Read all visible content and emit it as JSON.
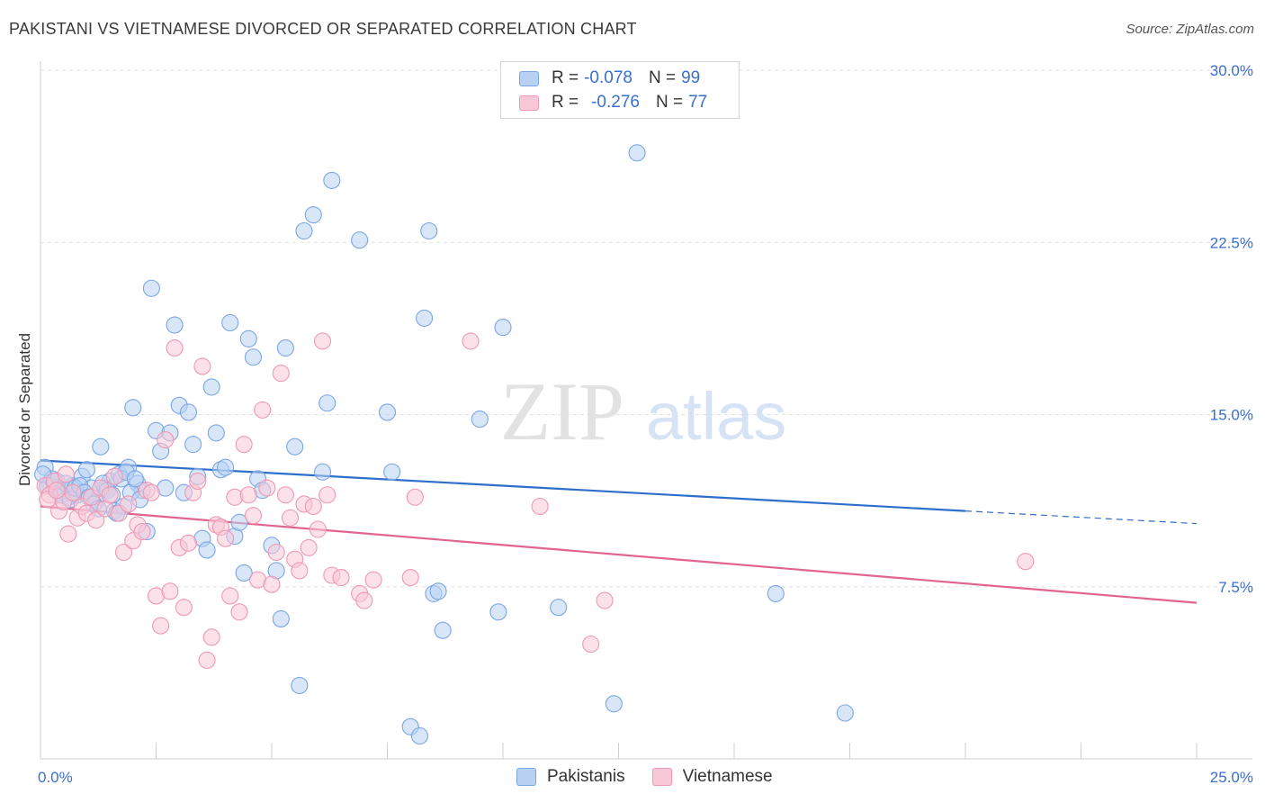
{
  "title": "PAKISTANI VS VIETNAMESE DIVORCED OR SEPARATED CORRELATION CHART",
  "source": "Source: ZipAtlas.com",
  "watermark": {
    "part1": "ZIP",
    "part2": "atlas"
  },
  "legend": {
    "r_label": "R =",
    "n_label": "N =",
    "rows": [
      {
        "name": "Pakistanis",
        "r": "-0.078",
        "n": "99",
        "fill": "#b8d1f3",
        "stroke": "#7aa6e6"
      },
      {
        "name": "Vietnamese",
        "r": "-0.276",
        "n": "77",
        "fill": "#f9c8d7",
        "stroke": "#ef98b4"
      }
    ]
  },
  "chart_data": {
    "type": "scatter",
    "ylabel": "Divorced or Separated",
    "xlim": [
      0,
      25
    ],
    "ylim": [
      0,
      30
    ],
    "x_tick_labels": [
      {
        "value": 0,
        "label": "0.0%"
      },
      {
        "value": 25,
        "label": "25.0%"
      }
    ],
    "y_tick_labels": [
      {
        "value": 7.5,
        "label": "7.5%"
      },
      {
        "value": 15,
        "label": "15.0%"
      },
      {
        "value": 22.5,
        "label": "22.5%"
      },
      {
        "value": 30,
        "label": "30.0%"
      }
    ],
    "grid": true,
    "legend_position": "top-center",
    "series": [
      {
        "name": "Pakistanis",
        "color": "#7aa6e6",
        "fill": "#b8d1f3",
        "trend_color": "#2e6fcc",
        "trend": {
          "x0": 0,
          "y0": 13.0,
          "x1": 20,
          "y1": 10.8,
          "dashed_to_x": 25,
          "dashed_to_y": 10.25
        },
        "points": [
          [
            0.1,
            12.7
          ],
          [
            0.2,
            12.0
          ],
          [
            0.3,
            11.8
          ],
          [
            0.35,
            12.1
          ],
          [
            0.4,
            11.6
          ],
          [
            0.5,
            11.7
          ],
          [
            0.6,
            11.4
          ],
          [
            0.7,
            11.9
          ],
          [
            0.8,
            11.5
          ],
          [
            0.9,
            12.3
          ],
          [
            1.0,
            12.6
          ],
          [
            1.1,
            11.8
          ],
          [
            1.2,
            11.2
          ],
          [
            1.3,
            13.6
          ],
          [
            1.4,
            11.8
          ],
          [
            1.5,
            12.1
          ],
          [
            1.6,
            10.8
          ],
          [
            1.7,
            12.4
          ],
          [
            1.8,
            11.0
          ],
          [
            1.9,
            12.7
          ],
          [
            2.0,
            15.3
          ],
          [
            2.1,
            12.0
          ],
          [
            2.2,
            11.7
          ],
          [
            2.3,
            9.9
          ],
          [
            2.4,
            20.5
          ],
          [
            2.5,
            14.3
          ],
          [
            2.6,
            13.4
          ],
          [
            2.7,
            11.8
          ],
          [
            2.8,
            14.2
          ],
          [
            2.9,
            18.9
          ],
          [
            3.0,
            15.4
          ],
          [
            3.1,
            11.6
          ],
          [
            3.2,
            15.1
          ],
          [
            3.3,
            13.7
          ],
          [
            3.4,
            12.3
          ],
          [
            3.5,
            9.6
          ],
          [
            3.6,
            9.1
          ],
          [
            3.7,
            16.2
          ],
          [
            3.8,
            14.2
          ],
          [
            3.9,
            12.6
          ],
          [
            4.0,
            12.7
          ],
          [
            4.1,
            19.0
          ],
          [
            4.2,
            9.7
          ],
          [
            4.3,
            10.3
          ],
          [
            4.4,
            8.1
          ],
          [
            4.5,
            18.3
          ],
          [
            4.6,
            17.5
          ],
          [
            4.7,
            12.2
          ],
          [
            4.8,
            11.7
          ],
          [
            5.0,
            9.3
          ],
          [
            5.1,
            8.2
          ],
          [
            5.2,
            6.1
          ],
          [
            5.3,
            17.9
          ],
          [
            5.5,
            13.6
          ],
          [
            5.6,
            3.2
          ],
          [
            5.7,
            23.0
          ],
          [
            5.9,
            23.7
          ],
          [
            6.1,
            12.5
          ],
          [
            6.2,
            15.5
          ],
          [
            6.3,
            25.2
          ],
          [
            6.9,
            22.6
          ],
          [
            7.5,
            15.1
          ],
          [
            7.6,
            12.5
          ],
          [
            8.0,
            1.4
          ],
          [
            8.2,
            1.0
          ],
          [
            8.3,
            19.2
          ],
          [
            8.4,
            23.0
          ],
          [
            8.5,
            7.2
          ],
          [
            8.6,
            7.3
          ],
          [
            8.7,
            5.6
          ],
          [
            9.5,
            14.8
          ],
          [
            9.9,
            6.4
          ],
          [
            10.0,
            18.8
          ],
          [
            11.2,
            6.6
          ],
          [
            12.4,
            2.4
          ],
          [
            12.9,
            26.4
          ],
          [
            15.9,
            7.2
          ],
          [
            17.4,
            2.0
          ],
          [
            0.15,
            11.9
          ],
          [
            0.25,
            12.2
          ],
          [
            0.45,
            11.5
          ],
          [
            0.55,
            12.0
          ],
          [
            0.65,
            11.3
          ],
          [
            0.75,
            11.8
          ],
          [
            0.85,
            11.9
          ],
          [
            0.95,
            11.6
          ],
          [
            1.05,
            11.4
          ],
          [
            1.15,
            11.1
          ],
          [
            1.25,
            10.9
          ],
          [
            1.35,
            12.0
          ],
          [
            1.45,
            11.7
          ],
          [
            1.55,
            11.5
          ],
          [
            1.65,
            10.7
          ],
          [
            1.75,
            12.2
          ],
          [
            1.85,
            12.5
          ],
          [
            1.95,
            11.6
          ],
          [
            2.05,
            12.2
          ],
          [
            2.15,
            11.3
          ],
          [
            0.05,
            12.4
          ]
        ]
      },
      {
        "name": "Vietnamese",
        "color": "#ef98b4",
        "fill": "#f9c8d7",
        "trend_color": "#e2648e",
        "trend": {
          "x0": 0,
          "y0": 11.0,
          "x1": 25,
          "y1": 6.8
        },
        "points": [
          [
            0.1,
            11.9
          ],
          [
            0.2,
            11.5
          ],
          [
            0.3,
            12.1
          ],
          [
            0.4,
            10.8
          ],
          [
            0.5,
            11.2
          ],
          [
            0.6,
            9.8
          ],
          [
            0.7,
            11.6
          ],
          [
            0.8,
            10.5
          ],
          [
            0.9,
            11.0
          ],
          [
            1.0,
            10.7
          ],
          [
            1.1,
            11.4
          ],
          [
            1.2,
            10.4
          ],
          [
            1.3,
            11.8
          ],
          [
            1.4,
            10.9
          ],
          [
            1.5,
            11.5
          ],
          [
            1.6,
            12.3
          ],
          [
            1.7,
            10.7
          ],
          [
            1.8,
            9.0
          ],
          [
            1.9,
            11.1
          ],
          [
            2.0,
            9.5
          ],
          [
            2.1,
            10.2
          ],
          [
            2.2,
            9.9
          ],
          [
            2.3,
            11.7
          ],
          [
            2.4,
            11.6
          ],
          [
            2.5,
            7.1
          ],
          [
            2.6,
            5.8
          ],
          [
            2.7,
            13.9
          ],
          [
            2.8,
            7.3
          ],
          [
            2.9,
            17.9
          ],
          [
            3.0,
            9.2
          ],
          [
            3.1,
            6.6
          ],
          [
            3.2,
            9.4
          ],
          [
            3.3,
            11.6
          ],
          [
            3.4,
            12.1
          ],
          [
            3.5,
            17.1
          ],
          [
            3.6,
            4.3
          ],
          [
            3.7,
            5.3
          ],
          [
            3.8,
            10.2
          ],
          [
            3.9,
            10.1
          ],
          [
            4.0,
            9.6
          ],
          [
            4.1,
            7.1
          ],
          [
            4.2,
            11.4
          ],
          [
            4.3,
            6.4
          ],
          [
            4.4,
            13.7
          ],
          [
            4.5,
            11.5
          ],
          [
            4.6,
            10.6
          ],
          [
            4.7,
            7.8
          ],
          [
            4.8,
            15.2
          ],
          [
            4.9,
            11.8
          ],
          [
            5.0,
            7.6
          ],
          [
            5.1,
            9.0
          ],
          [
            5.2,
            16.8
          ],
          [
            5.3,
            11.5
          ],
          [
            5.4,
            10.5
          ],
          [
            5.5,
            8.7
          ],
          [
            5.6,
            8.2
          ],
          [
            5.7,
            11.1
          ],
          [
            5.8,
            9.2
          ],
          [
            5.9,
            11.0
          ],
          [
            6.0,
            10.0
          ],
          [
            6.1,
            18.2
          ],
          [
            6.2,
            11.5
          ],
          [
            6.3,
            8.0
          ],
          [
            6.5,
            7.9
          ],
          [
            6.9,
            7.2
          ],
          [
            7.0,
            6.9
          ],
          [
            7.2,
            7.8
          ],
          [
            8.0,
            7.9
          ],
          [
            8.1,
            11.4
          ],
          [
            9.3,
            18.2
          ],
          [
            10.8,
            11.0
          ],
          [
            11.9,
            5.0
          ],
          [
            12.2,
            6.9
          ],
          [
            0.15,
            11.3
          ],
          [
            0.35,
            11.7
          ],
          [
            0.55,
            12.4
          ],
          [
            21.3,
            8.6
          ]
        ]
      }
    ]
  }
}
